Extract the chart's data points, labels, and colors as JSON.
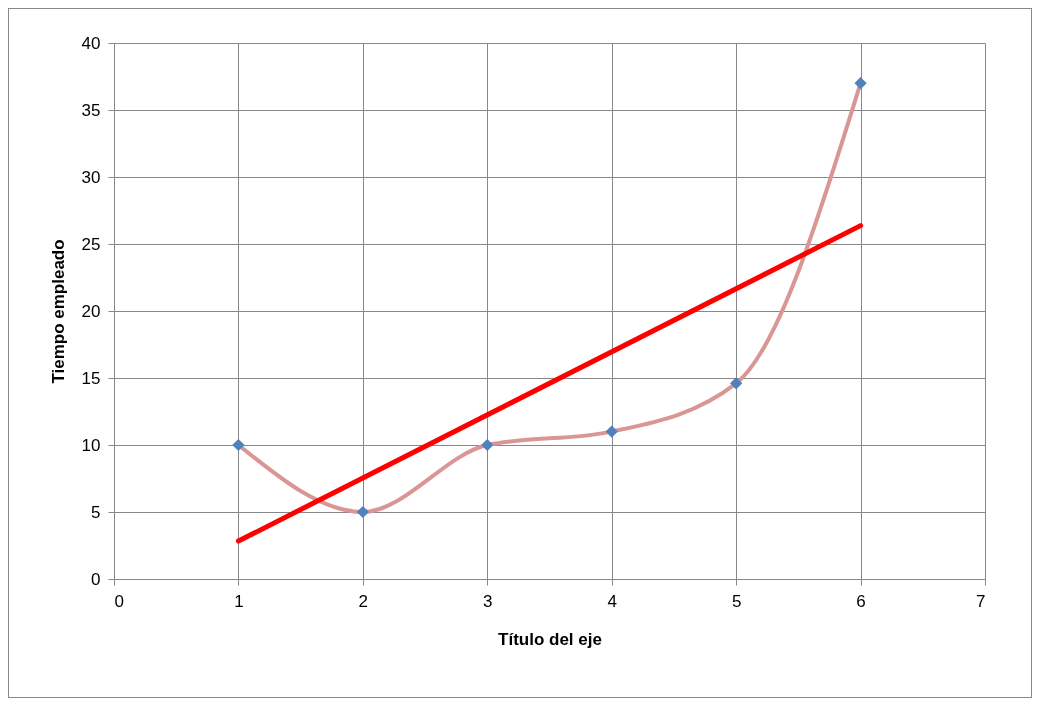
{
  "chart_data": {
    "type": "line",
    "xlabel": "Título del eje",
    "ylabel": "Tiempo empleado",
    "xlim": [
      0,
      7
    ],
    "xticks": [
      0,
      1,
      2,
      3,
      4,
      5,
      6,
      7
    ],
    "ylim": [
      0,
      40
    ],
    "yticks": [
      0,
      5,
      10,
      15,
      20,
      25,
      30,
      35,
      40
    ],
    "grid": true,
    "series": [
      {
        "color": "#d99694",
        "marker": "none",
        "x": [
          1,
          2,
          3,
          4,
          5,
          6
        ],
        "values": [
          10,
          5,
          10,
          11,
          14.6,
          37
        ]
      },
      {
        "type": "scatter",
        "color": "#4f81bd",
        "marker": "diamond",
        "x": [
          1,
          2,
          3,
          4,
          5,
          6
        ],
        "values": [
          10,
          5,
          10,
          11,
          14.6,
          37
        ]
      },
      {
        "color": "#ff0000",
        "marker": "none",
        "x": [
          1,
          6
        ],
        "values": [
          2.83,
          26.37
        ]
      }
    ]
  }
}
